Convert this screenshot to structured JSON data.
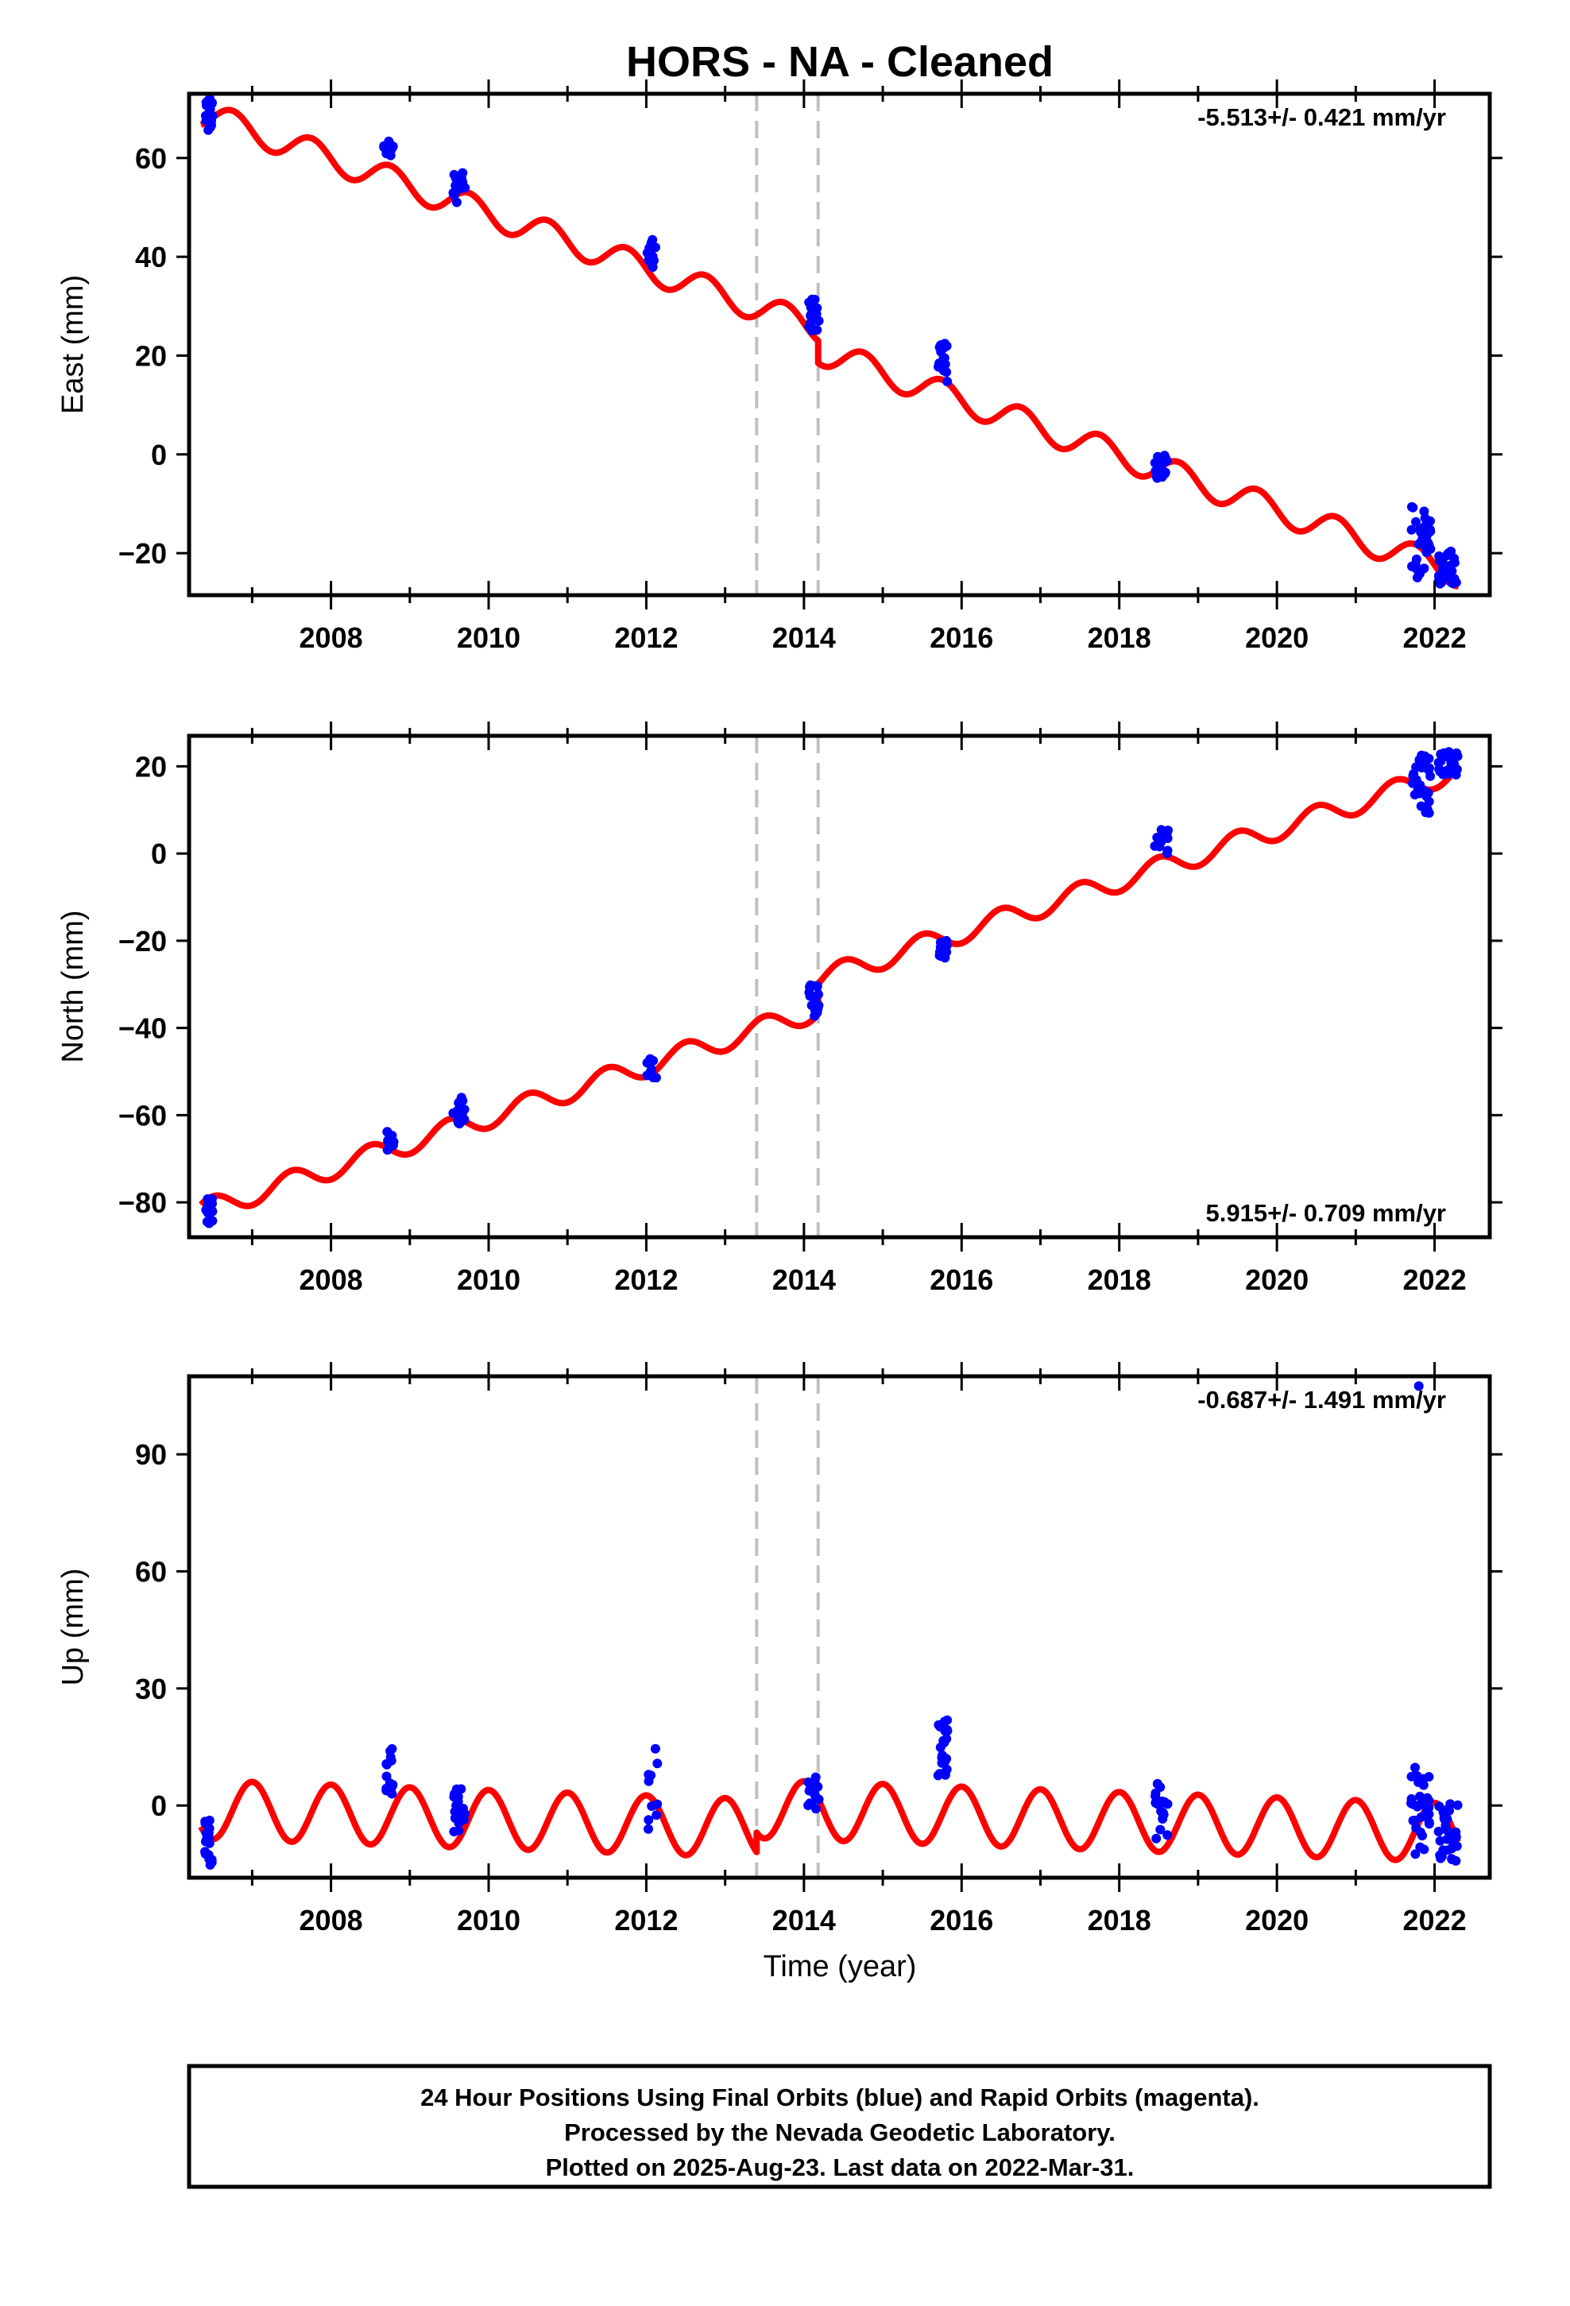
{
  "title": "HORS  - NA - Cleaned",
  "footer": {
    "lines": [
      "24 Hour Positions Using Final Orbits (blue) and Rapid Orbits (magenta).",
      "Processed by the Nevada Geodetic Laboratory.",
      "Plotted on 2025-Aug-23. Last data on 2022-Mar-31."
    ]
  },
  "colors": {
    "observations": "#0000ff",
    "model": "#ff0000",
    "breaks": "#c0c0c0",
    "axes": "#000000"
  },
  "x_axis": {
    "label": "Time (year)",
    "range": [
      2006.2,
      2022.7
    ],
    "ticks": [
      2008,
      2010,
      2012,
      2014,
      2016,
      2018,
      2020,
      2022
    ],
    "tick_labels": [
      "2008",
      "2010",
      "2012",
      "2014",
      "2016",
      "2018",
      "2020",
      "2022"
    ]
  },
  "chart_data": [
    {
      "type": "scatter",
      "component": "east",
      "ylabel": "East (mm)",
      "ylim": [
        -28.5,
        73
      ],
      "yticks": [
        -20,
        0,
        20,
        40,
        60
      ],
      "ytick_labels": [
        "−20",
        "0",
        "20",
        "40",
        "60"
      ],
      "rate": "-5.513+/- 0.421 mm/yr",
      "rate_position": "top-right",
      "breaks": [
        2013.4,
        2014.18
      ],
      "model": {
        "t0": 2006.35,
        "offset": 69.0,
        "slope": -5.55,
        "amplitude": 2.8,
        "phase_year": 2006.75,
        "steps": [
          {
            "year": 2013.4,
            "size": 0
          },
          {
            "year": 2014.18,
            "size": -4.5
          }
        ]
      },
      "clusters": [
        {
          "x": [
            2006.4,
            2006.5
          ],
          "y": [
            65.5,
            72.0
          ],
          "n": 30
        },
        {
          "x": [
            2008.67,
            2008.8
          ],
          "y": [
            60.5,
            63.5
          ],
          "n": 15
        },
        {
          "x": [
            2009.55,
            2009.7
          ],
          "y": [
            51.0,
            57.0
          ],
          "n": 20
        },
        {
          "x": [
            2012.0,
            2012.12
          ],
          "y": [
            37.0,
            44.0
          ],
          "n": 12
        },
        {
          "x": [
            2014.05,
            2014.2
          ],
          "y": [
            25.0,
            31.5
          ],
          "n": 20
        },
        {
          "x": [
            2015.7,
            2015.82
          ],
          "y": [
            14.5,
            22.5
          ],
          "n": 20
        },
        {
          "x": [
            2018.45,
            2018.62
          ],
          "y": [
            -5.0,
            0.0
          ],
          "n": 20
        },
        {
          "x": [
            2021.7,
            2021.95
          ],
          "y": [
            -25.0,
            -10.5
          ],
          "n": 35
        },
        {
          "x": [
            2022.05,
            2022.3
          ],
          "y": [
            -26.5,
            -19.5
          ],
          "n": 30
        }
      ]
    },
    {
      "type": "scatter",
      "component": "north",
      "ylabel": "North (mm)",
      "ylim": [
        -88,
        27
      ],
      "yticks": [
        -80,
        -60,
        -40,
        -20,
        0,
        20
      ],
      "ytick_labels": [
        "−80",
        "−60",
        "−40",
        "−20",
        "0",
        "20"
      ],
      "rate": "5.915+/- 0.709 mm/yr",
      "rate_position": "bottom-right",
      "breaks": [
        2013.4,
        2014.18
      ],
      "model": {
        "t0": 2006.35,
        "offset": -82.0,
        "slope": 5.9,
        "amplitude": 2.5,
        "phase_year": 2006.5,
        "steps": [
          {
            "year": 2013.4,
            "size": 0
          },
          {
            "year": 2014.18,
            "size": 7.0
          }
        ]
      },
      "clusters": [
        {
          "x": [
            2006.4,
            2006.5
          ],
          "y": [
            -85.0,
            -79.0
          ],
          "n": 20
        },
        {
          "x": [
            2008.7,
            2008.8
          ],
          "y": [
            -68.0,
            -63.0
          ],
          "n": 12
        },
        {
          "x": [
            2009.55,
            2009.7
          ],
          "y": [
            -62.0,
            -55.5
          ],
          "n": 15
        },
        {
          "x": [
            2012.0,
            2012.15
          ],
          "y": [
            -51.5,
            -47.0
          ],
          "n": 10
        },
        {
          "x": [
            2014.05,
            2014.2
          ],
          "y": [
            -37.5,
            -29.0
          ],
          "n": 15
        },
        {
          "x": [
            2015.7,
            2015.82
          ],
          "y": [
            -24.0,
            -20.0
          ],
          "n": 15
        },
        {
          "x": [
            2018.45,
            2018.62
          ],
          "y": [
            0.0,
            5.5
          ],
          "n": 15
        },
        {
          "x": [
            2021.7,
            2021.95
          ],
          "y": [
            8.5,
            23.0
          ],
          "n": 30
        },
        {
          "x": [
            2022.05,
            2022.3
          ],
          "y": [
            18.0,
            24.0
          ],
          "n": 25
        }
      ]
    },
    {
      "type": "scatter",
      "component": "up",
      "ylabel": "Up (mm)",
      "ylim": [
        -18.5,
        110
      ],
      "yticks": [
        0,
        30,
        60,
        90
      ],
      "ytick_labels": [
        "0",
        "30",
        "60",
        "90"
      ],
      "rate": "-0.687+/- 1.491 mm/yr",
      "rate_position": "top-right",
      "breaks": [
        2013.4,
        2014.18
      ],
      "model": {
        "t0": 2006.35,
        "offset": -1.0,
        "slope": -0.69,
        "amplitude": 7.5,
        "phase_year": 2006.0,
        "steps": [
          {
            "year": 2013.4,
            "size": 5.0
          },
          {
            "year": 2014.18,
            "size": 0
          }
        ]
      },
      "clusters": [
        {
          "x": [
            2006.4,
            2006.5
          ],
          "y": [
            -16.0,
            -3.0
          ],
          "n": 20
        },
        {
          "x": [
            2008.7,
            2008.8
          ],
          "y": [
            3.0,
            16.0
          ],
          "n": 15
        },
        {
          "x": [
            2009.55,
            2009.7
          ],
          "y": [
            -7.0,
            5.5
          ],
          "n": 20
        },
        {
          "x": [
            2012.0,
            2012.15
          ],
          "y": [
            -7.0,
            15.5
          ],
          "n": 10
        },
        {
          "x": [
            2014.05,
            2014.2
          ],
          "y": [
            -1.0,
            8.0
          ],
          "n": 15
        },
        {
          "x": [
            2015.7,
            2015.82
          ],
          "y": [
            7.0,
            22.5
          ],
          "n": 25
        },
        {
          "x": [
            2018.45,
            2018.62
          ],
          "y": [
            -9.0,
            6.0
          ],
          "n": 20
        },
        {
          "x": [
            2021.7,
            2021.95
          ],
          "y": [
            -12.5,
            11.0
          ],
          "n": 35
        },
        {
          "x": [
            2022.05,
            2022.3
          ],
          "y": [
            -15.0,
            1.0
          ],
          "n": 30
        },
        {
          "x": [
            2021.8,
            2021.8
          ],
          "y": [
            107.5,
            107.5
          ],
          "n": 1
        }
      ]
    }
  ]
}
